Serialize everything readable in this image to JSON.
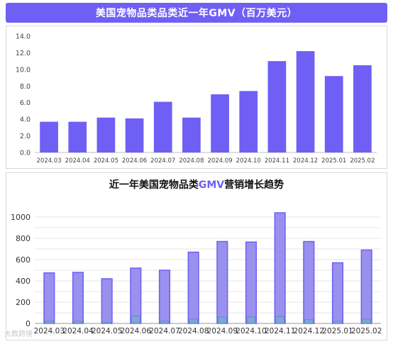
{
  "top": {
    "banner_title": "美国宠物品类品类近一年GMV（百万美元）"
  },
  "bottom": {
    "title_prefix": "近一年美国宠物品类",
    "title_accent": "GMV",
    "title_suffix": "营销增长趋势"
  },
  "watermark": "大数跨境",
  "chart_data": [
    {
      "type": "bar",
      "title": "美国宠物品类品类近一年GMV（百万美元）",
      "categories": [
        "2024.03",
        "2024.04",
        "2024.05",
        "2024.06",
        "2024.07",
        "2024.08",
        "2024.09",
        "2024.10",
        "2024.11",
        "2024.12",
        "2025.01",
        "2025.02"
      ],
      "values": [
        3.7,
        3.7,
        4.2,
        4.1,
        6.1,
        4.2,
        7.0,
        7.4,
        11.0,
        12.2,
        9.2,
        10.5
      ],
      "yticks": [
        "0.0",
        "2.0",
        "4.0",
        "6.0",
        "8.0",
        "10.0",
        "12.0",
        "14.0"
      ],
      "ylim": [
        0,
        14
      ],
      "grid": false,
      "colors": {
        "bar": "#6f5ff5"
      }
    },
    {
      "type": "bar",
      "title": "近一年美国宠物品类GMV营销增长趋势",
      "categories": [
        "2024.03",
        "2024.04",
        "2024.05",
        "2024.06",
        "2024.07",
        "2024.08",
        "2024.09",
        "2024.10",
        "2024.11",
        "2024.12",
        "2025.01",
        "2025.02"
      ],
      "series": [
        {
          "values": [
            475,
            480,
            420,
            520,
            500,
            670,
            770,
            765,
            1040,
            770,
            570,
            690
          ]
        },
        {
          "values": [
            20,
            20,
            10,
            70,
            20,
            40,
            60,
            60,
            65,
            35,
            20,
            40
          ]
        }
      ],
      "yticks": [
        "0",
        "200",
        "400",
        "600",
        "800",
        "1000"
      ],
      "ylim": [
        0,
        1080
      ],
      "grid": true,
      "colors": {
        "outer": "#9a90ee",
        "outer_border": "#6f5ff5",
        "inner": "#7ca6d6",
        "inner_border": "#5a86c0",
        "grid": "#e6e6e6"
      }
    }
  ]
}
